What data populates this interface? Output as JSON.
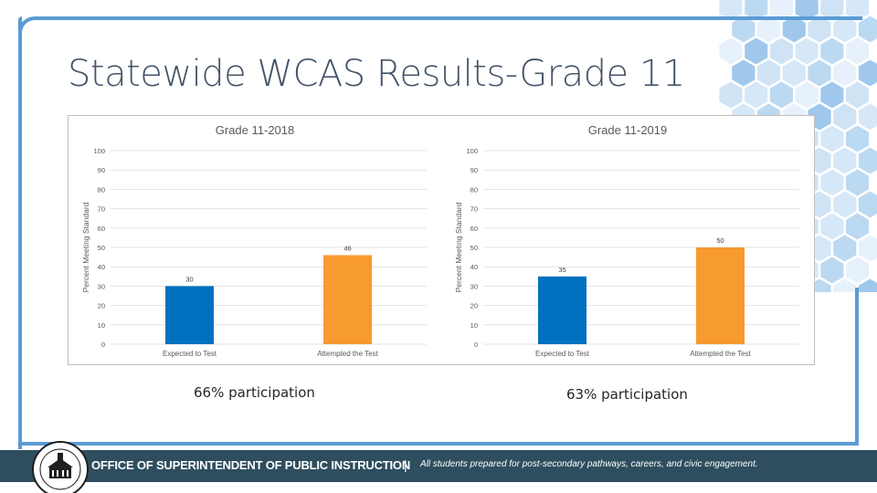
{
  "slide": {
    "title": "Statewide WCAS Results-Grade 11"
  },
  "colors": {
    "accent": "#5b9bd5",
    "expected_bar": "#0070c0",
    "attempted_bar": "#f79a30",
    "footer": "#2e4e5f"
  },
  "chart_data": [
    {
      "type": "bar",
      "title": "Grade 11-2018",
      "ylabel": "Percent Meeting Standard",
      "categories": [
        "Expected to Test",
        "Attempted the Test"
      ],
      "values": [
        30,
        46
      ],
      "value_labels": [
        "30",
        "46"
      ],
      "ylim": [
        0,
        100
      ],
      "yticks": [
        0,
        10,
        20,
        30,
        40,
        50,
        60,
        70,
        80,
        90,
        100
      ],
      "grid": true
    },
    {
      "type": "bar",
      "title": "Grade 11-2019",
      "ylabel": "Percent Meeting Standard",
      "categories": [
        "Expected to Test",
        "Attempted the Test"
      ],
      "values": [
        35,
        50
      ],
      "value_labels": [
        "35",
        "50"
      ],
      "ylim": [
        0,
        100
      ],
      "yticks": [
        0,
        10,
        20,
        30,
        40,
        50,
        60,
        70,
        80,
        90,
        100
      ],
      "grid": true
    }
  ],
  "notes": {
    "left": "66% participation",
    "right": "63% participation"
  },
  "footer": {
    "office": "OFFICE OF SUPERINTENDENT OF PUBLIC INSTRUCTION",
    "separator": "|",
    "tagline": "All students prepared for post-secondary pathways, careers, and civic engagement.",
    "seal_text": "SUPERINTENDENT OF PUBLIC INSTRUCTION · OLYMPIA · WASHINGTON"
  }
}
